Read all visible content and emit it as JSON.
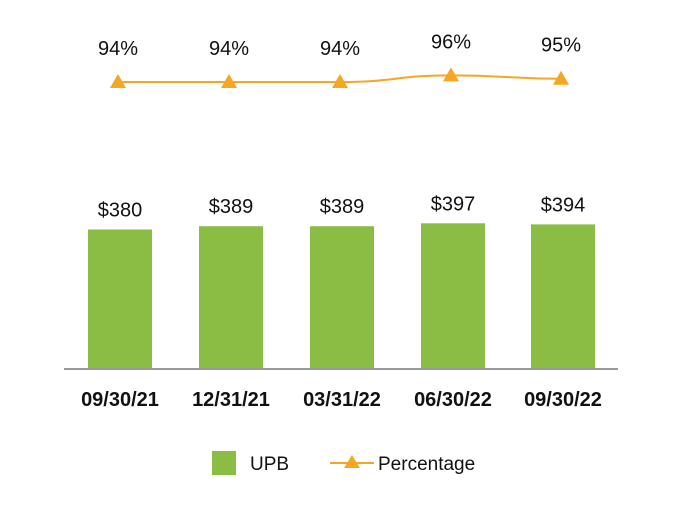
{
  "chart_data": {
    "type": "bar",
    "categories": [
      "09/30/21",
      "12/31/21",
      "03/31/22",
      "06/30/22",
      "09/30/22"
    ],
    "series": [
      {
        "name": "UPB",
        "type": "bar",
        "values": [
          380,
          389,
          389,
          397,
          394
        ],
        "labels": [
          "$380",
          "$389",
          "$389",
          "$397",
          "$394"
        ],
        "color": "#8bbd45"
      },
      {
        "name": "Percentage",
        "type": "line",
        "values": [
          94,
          94,
          94,
          96,
          95
        ],
        "labels": [
          "94%",
          "94%",
          "94%",
          "96%",
          "95%"
        ],
        "color": "#f5a623",
        "marker": "triangle"
      }
    ],
    "legend_position": "bottom-center",
    "axis_color": "#999999",
    "grid": false
  }
}
